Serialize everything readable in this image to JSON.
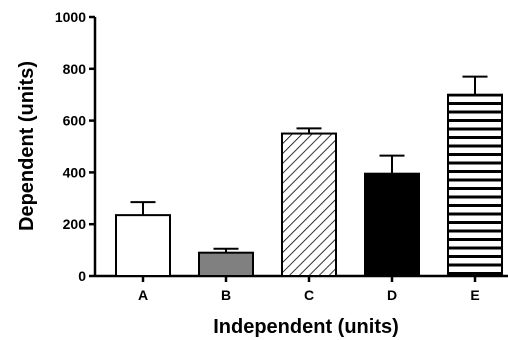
{
  "chart_data": {
    "type": "bar",
    "title": "",
    "xlabel": "Independent (units)",
    "ylabel": "Dependent (units)",
    "ylim": [
      0,
      1000
    ],
    "yticks": [
      0,
      200,
      400,
      600,
      800,
      1000
    ],
    "tick_labels": [
      "0",
      "200",
      "400",
      "600",
      "800",
      "1000"
    ],
    "categories": [
      "A",
      "B",
      "C",
      "D",
      "E"
    ],
    "values": [
      235,
      90,
      550,
      395,
      700
    ],
    "error_upper": [
      50,
      15,
      20,
      70,
      70
    ],
    "fills": [
      "white",
      "gray",
      "diagonal-hatch",
      "black",
      "horizontal-stripes"
    ],
    "colors": {
      "gray": "#808080",
      "black": "#000000",
      "outline": "#000000"
    },
    "grid": false,
    "legend": "none"
  }
}
